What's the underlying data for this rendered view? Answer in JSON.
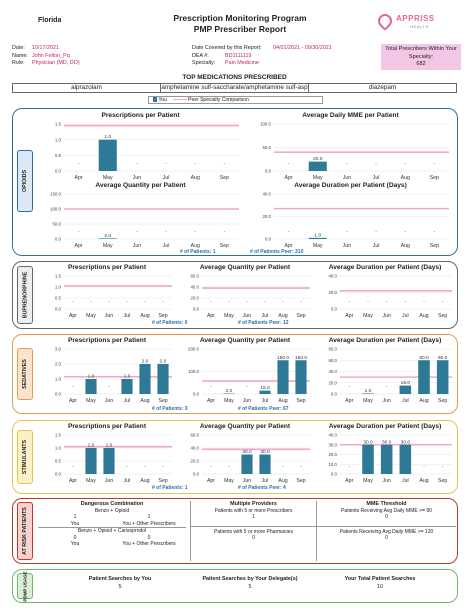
{
  "header": {
    "state": "Florida",
    "title_line1": "Prescription Monitoring Program",
    "title_line2": "PMP Prescriber Report",
    "logo_text": "APPRISS",
    "logo_sub": "HEALTH"
  },
  "prescriber": {
    "date_label": "Date:",
    "date": "10/17/2021",
    "name_label": "Name:",
    "name": "John Felton_Pq",
    "role_label": "Role:",
    "role": "Physician (MD, DO)"
  },
  "coverage": {
    "period_label": "Date Covered by this Report:",
    "period": "04/01/2021 - 09/30/2021",
    "dea_label": "DEA #:",
    "dea": "BD1111119",
    "spec_label": "Specialty:",
    "specialty": "Pain Medicine"
  },
  "totals": {
    "label": "Total Prescribers Within Your Specialty:",
    "value": "682"
  },
  "top_meds": {
    "title": "TOP MEDICATIONS PRESCRIBED",
    "items": [
      "alprazolam",
      "amphetamine sulf-saccharate/amphetamine sulf-asp",
      "diazepam"
    ]
  },
  "legend": {
    "you": "You",
    "peer": "Peer Specialty Comparison"
  },
  "colors": {
    "you": "#2e7a96",
    "peer": "#f2a6d0",
    "opioids": "#2e6fa3",
    "bup": "#666666",
    "sed": "#e89a52",
    "stim": "#e0c64f",
    "atrisk": "#c0392b",
    "usage": "#6db86d"
  },
  "sections": [
    {
      "key": "opioids",
      "label": "OPIOIDS",
      "patients": "# of Patients: 1",
      "peer": "# of Patients Peer: 310",
      "charts": [
        {
          "title": "Prescriptions per Patient",
          "yticks": [
            "1.5",
            "1.0",
            "0.5",
            "0.0"
          ],
          "ymax": 1.5,
          "x": [
            "Apr",
            "May",
            "Jun",
            "Jul",
            "Aug",
            "Sep"
          ],
          "values": [
            null,
            1.0,
            null,
            null,
            null,
            null
          ],
          "labels": [
            "-",
            "1.0",
            "-",
            "-",
            "-",
            "-"
          ],
          "peer": 1.45
        },
        {
          "title": "Average Daily MME per Patient",
          "yticks": [
            "100.0",
            "50.0",
            "0.0"
          ],
          "ymax": 100,
          "x": [
            "Apr",
            "May",
            "Jun",
            "Jul",
            "Aug",
            "Sep"
          ],
          "values": [
            null,
            20.0,
            null,
            null,
            null,
            null
          ],
          "labels": [
            "-",
            "20.0",
            "-",
            "-",
            "-",
            "-"
          ],
          "peer": 40
        },
        {
          "title": "Average Quantity per Patient",
          "yticks": [
            "150.0",
            "100.0",
            "50.0",
            "0.0"
          ],
          "ymax": 150,
          "x": [
            "Apr",
            "May",
            "Jun",
            "Jul",
            "Aug",
            "Sep"
          ],
          "values": [
            null,
            2.0,
            null,
            null,
            null,
            null
          ],
          "labels": [
            "-",
            "2.0",
            "-",
            "-",
            "-",
            "-"
          ],
          "peer": 100
        },
        {
          "title": "Average Duration per Patient (Days)",
          "yticks": [
            "40.0",
            "20.0",
            "0.0"
          ],
          "ymax": 40,
          "x": [
            "Apr",
            "May",
            "Jun",
            "Jul",
            "Aug",
            "Sep"
          ],
          "values": [
            null,
            1.0,
            null,
            null,
            null,
            null
          ],
          "labels": [
            "-",
            "1.0",
            "-",
            "-",
            "-",
            "-"
          ],
          "peer": 27
        }
      ]
    },
    {
      "key": "bup",
      "label": "BUPRENORPHINE",
      "patients": "# of Patients: 0",
      "peer": "# of Patients Peer: 12",
      "charts": [
        {
          "title": "Prescriptions per Patient",
          "yticks": [
            "1.5",
            "1.0",
            "0.5",
            "0.0"
          ],
          "ymax": 1.5,
          "x": [
            "Apr",
            "May",
            "Jun",
            "Jul",
            "Aug",
            "Sep"
          ],
          "values": [
            null,
            null,
            null,
            null,
            null,
            null
          ],
          "labels": [
            "-",
            "-",
            "-",
            "-",
            "-",
            "-"
          ],
          "peer": 1.05
        },
        {
          "title": "Average Quantity per Patient",
          "yticks": [
            "60.0",
            "40.0",
            "20.0",
            "0.0"
          ],
          "ymax": 60,
          "x": [
            "Apr",
            "May",
            "Jun",
            "Jul",
            "Aug",
            "Sep"
          ],
          "values": [
            null,
            null,
            null,
            null,
            null,
            null
          ],
          "labels": [
            "-",
            "-",
            "-",
            "-",
            "-",
            "-"
          ],
          "peer": 38
        },
        {
          "title": "Average Duration per Patient (Days)",
          "yticks": [
            "40.0",
            "20.0",
            "0.0"
          ],
          "ymax": 40,
          "x": [
            "Apr",
            "May",
            "Jun",
            "Jul",
            "Aug",
            "Sep"
          ],
          "values": [
            null,
            null,
            null,
            null,
            null,
            null
          ],
          "labels": [
            "-",
            "-",
            "-",
            "-",
            "-",
            "-"
          ],
          "peer": 22
        }
      ]
    },
    {
      "key": "sed",
      "label": "SEDATIVES",
      "patients": "# of Patients: 3",
      "peer": "# of Patients Peer: 67",
      "charts": [
        {
          "title": "Prescriptions per Patient",
          "yticks": [
            "3.0",
            "2.0",
            "1.0",
            "0.0"
          ],
          "ymax": 3,
          "x": [
            "Apr",
            "May",
            "Jun",
            "Jul",
            "Aug",
            "Sep"
          ],
          "values": [
            null,
            1.0,
            null,
            1.0,
            2.0,
            2.0
          ],
          "labels": [
            "-",
            "1.0",
            "-",
            "1.0",
            "2.0",
            "2.0"
          ],
          "peer": 1.15
        },
        {
          "title": "Average Quantity per Patient",
          "yticks": [
            "200.0",
            "100.0",
            "0.0"
          ],
          "ymax": 200,
          "x": [
            "Apr",
            "May",
            "Jun",
            "Jul",
            "Aug",
            "Sep"
          ],
          "values": [
            null,
            2.0,
            null,
            15.0,
            150.0,
            150.0
          ],
          "labels": [
            "-",
            "2.0",
            "-",
            "15.0",
            "150.0",
            "150.0"
          ],
          "peer": 58
        },
        {
          "title": "Average Duration per Patient (Days)",
          "yticks": [
            "80.0",
            "60.0",
            "40.0",
            "20.0",
            "0.0"
          ],
          "ymax": 80,
          "x": [
            "Apr",
            "May",
            "Jun",
            "Jul",
            "Aug",
            "Sep"
          ],
          "values": [
            null,
            1.0,
            null,
            15.0,
            60.0,
            60.0
          ],
          "labels": [
            "-",
            "1.0",
            "-",
            "15.0",
            "60.0",
            "60.0"
          ],
          "peer": 30
        }
      ]
    },
    {
      "key": "stim",
      "label": "STIMULANTS",
      "patients": "# of Patients: 1",
      "peer": "# of Patients Peer: 4",
      "charts": [
        {
          "title": "Prescriptions per Patient",
          "yticks": [
            "1.5",
            "1.0",
            "0.5",
            "0.0"
          ],
          "ymax": 1.5,
          "x": [
            "Apr",
            "May",
            "Jun",
            "Jul",
            "Aug",
            "Sep"
          ],
          "values": [
            null,
            1.0,
            1.0,
            null,
            null,
            null
          ],
          "labels": [
            "-",
            "1.0",
            "1.0",
            "-",
            "-",
            "-"
          ],
          "peer": 1.05
        },
        {
          "title": "Average Quantity per Patient",
          "yticks": [
            "60.0",
            "40.0",
            "20.0",
            "0.0"
          ],
          "ymax": 60,
          "x": [
            "Apr",
            "May",
            "Jun",
            "Jul",
            "Aug",
            "Sep"
          ],
          "values": [
            null,
            null,
            30.0,
            30.0,
            null,
            null
          ],
          "labels": [
            "-",
            "-",
            "30.0",
            "30.0",
            "-",
            "-"
          ],
          "peer": 38
        },
        {
          "title": "Average Duration per Patient (Days)",
          "yticks": [
            "40.0",
            "30.0",
            "20.0",
            "10.0",
            "0.0"
          ],
          "ymax": 40,
          "x": [
            "Apr",
            "May",
            "Jun",
            "Jul",
            "Aug",
            "Sep"
          ],
          "values": [
            null,
            30.0,
            30.0,
            30.0,
            null,
            null
          ],
          "labels": [
            "-",
            "30.0",
            "30.0",
            "30.0",
            "-",
            "-"
          ],
          "peer": 30
        }
      ]
    }
  ],
  "at_risk": {
    "label": "AT RISK PATIENTS",
    "dangerous": {
      "title": "Dangerous Combination",
      "c1_title": "Benzo + Opioid",
      "c1_you": "1",
      "c1_you_label": "You",
      "c1_other": "1",
      "c1_other_label": "You + Other Prescribers",
      "c2_title": "Benzo + Opioid + Carisoprodol",
      "c2_you": "0",
      "c2_you_label": "You",
      "c2_other": "0",
      "c2_other_label": "You + Other Prescribers"
    },
    "multiple": {
      "title": "Multiple Providers",
      "r1_label": "Patients with 5 or more Prescribers",
      "r1_value": "1",
      "r2_label": "Patients with 5 or more Pharmacies",
      "r2_value": "0"
    },
    "mme": {
      "title": "MME Threshold",
      "r1_label": "Patients Receiving Avg Daily MME >= 90",
      "r1_value": "0",
      "r2_label": "Patients Receiving Avg Daily MME >= 120",
      "r2_value": "0"
    }
  },
  "usage": {
    "label": "PDMP USAGE",
    "you_label": "Patient Searches by You",
    "you_value": "5",
    "delegate_label": "Patient Searches by Your Delegate(s)",
    "delegate_value": "5",
    "total_label": "Your Total Patient Searches",
    "total_value": "10"
  }
}
